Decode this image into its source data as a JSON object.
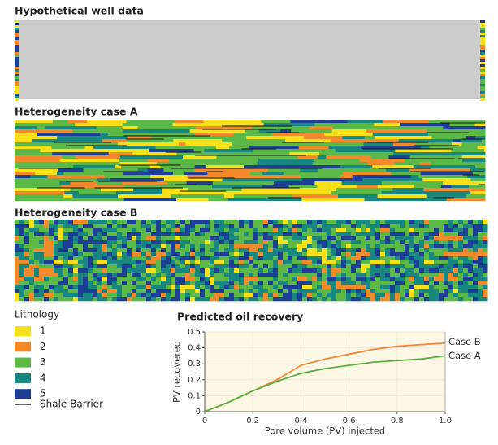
{
  "panels": [
    {
      "title": "Hypothetical well data"
    },
    {
      "title": "Heterogeneity case A"
    },
    {
      "title": "Heterogeneity case B"
    }
  ],
  "legend": {
    "title": "Lithology",
    "items": [
      {
        "label": "1",
        "color": "#f7e01a"
      },
      {
        "label": "2",
        "color": "#f28a2c"
      },
      {
        "label": "3",
        "color": "#5cb947"
      },
      {
        "label": "4",
        "color": "#17877f"
      },
      {
        "label": "5",
        "color": "#1d3f95"
      }
    ],
    "shale": "Shale Barrier"
  },
  "chart_data": {
    "type": "line",
    "title": "Predicted oil recovery",
    "x_label": "Pore volume (PV) injected",
    "y_label": "PV recovered",
    "x": [
      0,
      0.1,
      0.2,
      0.3,
      0.4,
      0.5,
      0.6,
      0.7,
      0.8,
      0.9,
      1.0
    ],
    "series": [
      {
        "name": "Caso B",
        "color": "#f0883a",
        "values": [
          0,
          0.06,
          0.13,
          0.2,
          0.29,
          0.33,
          0.36,
          0.39,
          0.41,
          0.42,
          0.43
        ]
      },
      {
        "name": "Case A",
        "color": "#5cae45",
        "values": [
          0,
          0.06,
          0.13,
          0.19,
          0.24,
          0.27,
          0.29,
          0.31,
          0.32,
          0.33,
          0.35
        ]
      }
    ],
    "xlim": [
      0,
      1
    ],
    "ylim": [
      0,
      0.5
    ],
    "xticks": [
      0,
      0.2,
      0.4,
      0.6,
      0.8,
      {
        "value": 1,
        "label": "1.0"
      }
    ],
    "yticks": [
      0,
      0.1,
      0.2,
      0.3,
      0.4,
      0.5
    ],
    "grid": true
  }
}
